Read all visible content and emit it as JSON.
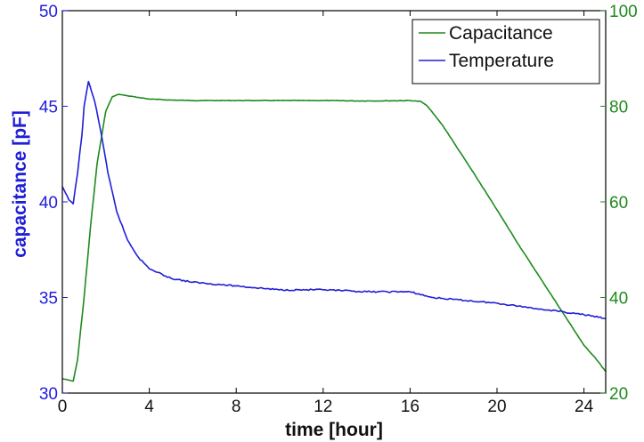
{
  "chart_data": {
    "type": "line",
    "title": "",
    "xlabel": "time [hour]",
    "ylabel_left": "capacitance [pF]",
    "ylabel_right": "",
    "xlim": [
      0,
      25
    ],
    "ylim_left": [
      30,
      50
    ],
    "ylim_right": [
      20,
      100
    ],
    "xticks": [
      "0",
      "4",
      "8",
      "12",
      "16",
      "20",
      "24"
    ],
    "yticks_left": [
      "30",
      "35",
      "40",
      "45",
      "50"
    ],
    "yticks_right": [
      "20",
      "40",
      "60",
      "80",
      "100"
    ],
    "grid": false,
    "legend_position": "top-right",
    "colors": {
      "left_axis": "#1f1fd8",
      "right_axis": "#1f8a1f",
      "capacitance": "#1f8a1f",
      "temperature": "#1f1fd8"
    },
    "series": [
      {
        "name": "Capacitance",
        "axis": "right",
        "color": "#1f8a1f",
        "x": [
          0,
          0.5,
          0.7,
          1.0,
          1.3,
          1.6,
          2.0,
          2.3,
          2.6,
          3.0,
          4.0,
          5.0,
          6.0,
          8.0,
          10.0,
          12.0,
          14.0,
          16.0,
          16.5,
          16.8,
          17.5,
          18.0,
          19.0,
          20.0,
          21.0,
          22.0,
          23.0,
          23.5,
          24.0,
          24.5,
          25.0
        ],
        "y": [
          23,
          22.5,
          27,
          40,
          55,
          68,
          79,
          82,
          82.5,
          82.2,
          81.5,
          81.3,
          81.2,
          81.2,
          81.2,
          81.2,
          81.1,
          81.2,
          81.0,
          80.0,
          76.0,
          72.5,
          65.5,
          58.3,
          51.0,
          44.0,
          37.0,
          33.5,
          30.0,
          27.5,
          24.5
        ]
      },
      {
        "name": "Temperature",
        "axis": "left",
        "color": "#1f1fd8",
        "x": [
          0,
          0.3,
          0.5,
          0.7,
          0.9,
          1.0,
          1.2,
          1.5,
          1.8,
          2.1,
          2.5,
          3.0,
          3.5,
          4.0,
          5.0,
          6.0,
          8.0,
          10.0,
          12.0,
          14.0,
          16.0,
          17.0,
          18.0,
          20.0,
          22.0,
          24.0,
          25.0
        ],
        "y": [
          40.8,
          40.1,
          39.9,
          41.5,
          43.5,
          45.0,
          46.3,
          45.2,
          43.5,
          41.5,
          39.5,
          38.0,
          37.1,
          36.5,
          36.0,
          35.8,
          35.6,
          35.4,
          35.4,
          35.3,
          35.3,
          35.0,
          34.9,
          34.7,
          34.4,
          34.1,
          33.9
        ]
      }
    ]
  }
}
